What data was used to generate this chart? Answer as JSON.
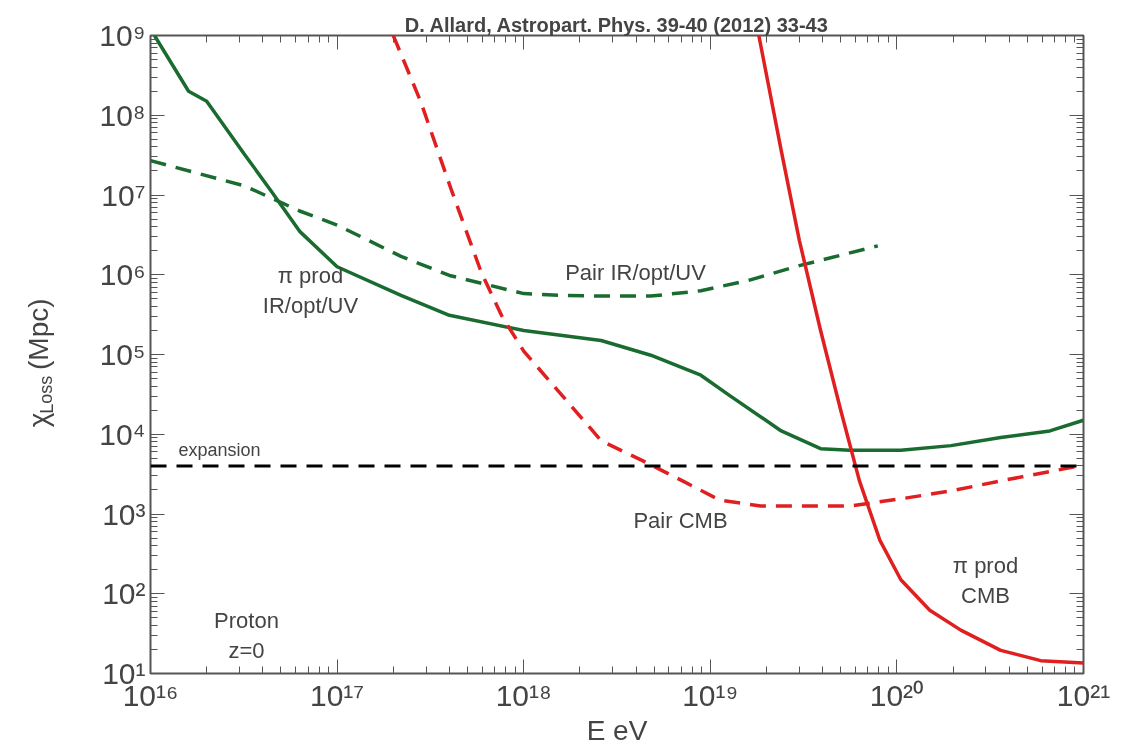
{
  "chart_data": {
    "type": "line",
    "title": "D. Allard, Astropart. Phys. 39-40 (2012) 33-43",
    "xlabel": "E eV",
    "ylabel": "χ$_{Loss}$ (Mpc)",
    "log": "xy",
    "grid": false,
    "xlim": [
      1e+16,
      1e+21
    ],
    "ylim": [
      10,
      1000000000.0
    ],
    "xticks": [
      {
        "value": 1e+16,
        "label": "10¹⁶"
      },
      {
        "value": 1e+17,
        "label": "10¹⁷"
      },
      {
        "value": 1e+18,
        "label": "10¹⁸"
      },
      {
        "value": 1e+19,
        "label": "10¹⁹"
      },
      {
        "value": 1e+20,
        "label": "10²⁰"
      },
      {
        "value": 1e+21,
        "label": "10²¹"
      }
    ],
    "yticks": [
      {
        "value": 10,
        "label": "10¹"
      },
      {
        "value": 100,
        "label": "10²"
      },
      {
        "value": 1000,
        "label": "10³"
      },
      {
        "value": 10000,
        "label": "10⁴"
      },
      {
        "value": 100000,
        "label": "10⁵"
      },
      {
        "value": 1000000,
        "label": "10⁶"
      },
      {
        "value": 10000000,
        "label": "10⁷"
      },
      {
        "value": 100000000,
        "label": "10⁸"
      },
      {
        "value": 1000000000,
        "label": "10⁹"
      }
    ],
    "series": [
      {
        "name": "π prod\nIR/opt/UV",
        "color": "#1a6b30",
        "line_style": "solid",
        "x": [
          1.05e+16,
          1.6e+16,
          2e+16,
          3.2e+16,
          4.4e+16,
          6.3e+16,
          1e+17,
          2.2e+17,
          4e+17,
          1e+18,
          2.6e+18,
          4.8e+18,
          8.9e+18,
          1.26e+19,
          2.4e+19,
          3.9e+19,
          5.6e+19,
          1.05e+20,
          1.95e+20,
          3.6e+20,
          6.6e+20,
          1e+21
        ],
        "values": [
          1000000000.0,
          200000000.0,
          150000000.0,
          32000000.0,
          11500000.0,
          3500000.0,
          1260000.0,
          550000.0,
          310000.0,
          200000.0,
          150000.0,
          98000.0,
          55000.0,
          31000.0,
          11000.0,
          6600.0,
          6300.0,
          6300.0,
          7200.0,
          9100.0,
          11000.0,
          15000.0
        ]
      },
      {
        "name": "Pair IR/opt/UV",
        "color": "#1a6b30",
        "line_style": "dashed",
        "x": [
          1e+16,
          3.2e+16,
          6.3e+16,
          1e+17,
          2.2e+17,
          4e+17,
          1e+18,
          1.6e+18,
          2.6e+18,
          4.8e+18,
          8.9e+18,
          1.6e+19,
          3e+19,
          7.9e+19
        ],
        "values": [
          27000000.0,
          13000000.0,
          6300000.0,
          4200000.0,
          1700000.0,
          980000.0,
          580000.0,
          550000.0,
          540000.0,
          540000.0,
          630000.0,
          850000.0,
          1300000.0,
          2300000.0
        ]
      },
      {
        "name": "Pair CMB",
        "color": "#e02020",
        "line_style": "dashed",
        "x": [
          2e+17,
          2.8e+17,
          4.1e+17,
          5.9e+17,
          7.6e+17,
          1e+18,
          1.6e+18,
          2.6e+18,
          4.3e+18,
          7.1e+18,
          1.12e+19,
          1.86e+19,
          3e+19,
          5.6e+19,
          1.05e+20,
          1.95e+20,
          3.6e+20,
          1e+21
        ],
        "values": [
          1000000000.0,
          150000000.0,
          11500000.0,
          1100000.0,
          310000.0,
          110000.0,
          31000.0,
          8300.0,
          4700.0,
          2600.0,
          1500.0,
          1260.0,
          1260.0,
          1260.0,
          1550.0,
          1950.0,
          2600.0,
          4100.0
        ]
      },
      {
        "name": "π prod\nCMB",
        "color": "#e02020",
        "line_style": "solid",
        "x": [
          1.82e+19,
          2.4e+19,
          3e+19,
          3.9e+19,
          5e+19,
          6.3e+19,
          8.1e+19,
          1.05e+20,
          1.5e+20,
          2.2e+20,
          3.6e+20,
          5.9e+20,
          1e+21
        ],
        "values": [
          1000000000.0,
          36000000.0,
          2700000.0,
          200000.0,
          20000.0,
          2600.0,
          470.0,
          150.0,
          62,
          35,
          19.5,
          14.5,
          13.5
        ]
      }
    ],
    "ref_lines": [
      {
        "axis": "y",
        "value": 4000,
        "label": "expansion",
        "color": "#000000",
        "line_style": "dashed"
      }
    ],
    "annotations": [
      "Proton\nz=0"
    ]
  }
}
